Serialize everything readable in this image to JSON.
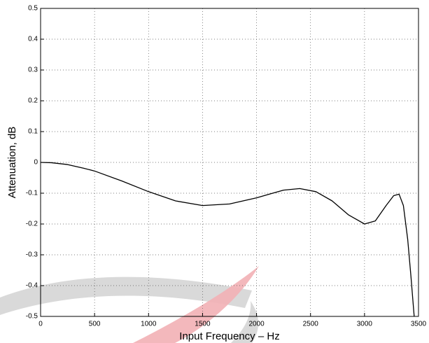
{
  "chart_data": {
    "type": "line",
    "x_label": "Input Frequency – Hz",
    "y_label": "Attenuation, dB",
    "x": [
      0,
      100,
      250,
      400,
      500,
      750,
      1000,
      1250,
      1500,
      1750,
      2000,
      2250,
      2400,
      2550,
      2700,
      2850,
      3000,
      3100,
      3200,
      3270,
      3320,
      3360,
      3400,
      3430,
      3460
    ],
    "values": [
      0,
      -0.001,
      -0.007,
      -0.019,
      -0.028,
      -0.06,
      -0.095,
      -0.125,
      -0.14,
      -0.135,
      -0.115,
      -0.09,
      -0.085,
      -0.095,
      -0.125,
      -0.17,
      -0.2,
      -0.19,
      -0.14,
      -0.108,
      -0.103,
      -0.14,
      -0.25,
      -0.37,
      -0.5
    ],
    "color": "#000000",
    "xlim": [
      0,
      3500
    ],
    "xticks": [
      0,
      500,
      1000,
      1500,
      2000,
      2500,
      3000,
      3500
    ],
    "ylim": [
      -0.5,
      0.5
    ],
    "yticks": [
      -0.5,
      -0.4,
      -0.3,
      -0.2,
      -0.1,
      0,
      0.1,
      0.2,
      0.3,
      0.4,
      0.5
    ],
    "grid": true
  }
}
